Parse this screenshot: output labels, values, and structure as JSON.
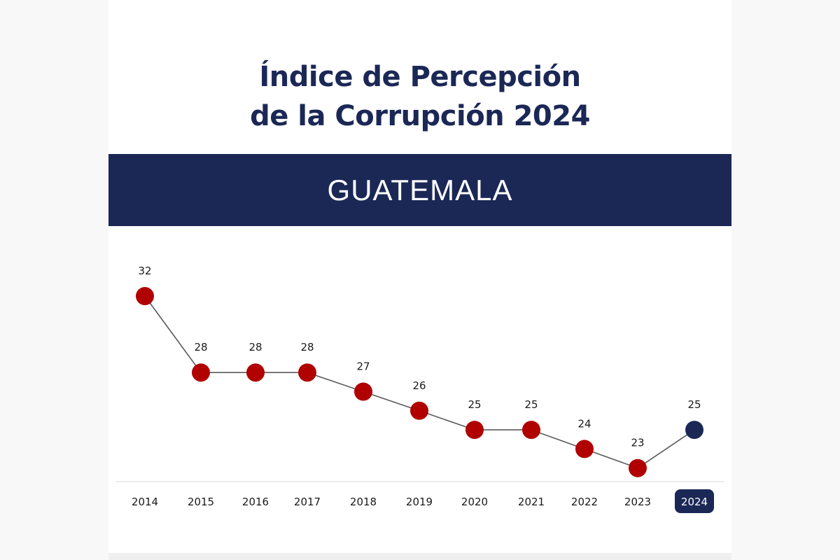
{
  "header": {
    "title_line1": "Índice de Percepción",
    "title_line2": "de la Corrupción 2024",
    "country": "GUATEMALA"
  },
  "colors": {
    "navy": "#1b2856",
    "point": "#b00000",
    "line": "#5a5a5a",
    "axis": "#e6e6e6"
  },
  "chart_data": {
    "type": "line",
    "title": "Índice de Percepción de la Corrupción 2024",
    "xlabel": "",
    "ylabel": "",
    "categories": [
      "2014",
      "2015",
      "2016",
      "2017",
      "2018",
      "2019",
      "2020",
      "2021",
      "2022",
      "2023",
      "2024"
    ],
    "series": [
      {
        "values": [
          32,
          28,
          28,
          28,
          27,
          26,
          25,
          25,
          24,
          23,
          25
        ]
      }
    ],
    "highlight_category": "2024",
    "data_labels": true,
    "grid": false
  }
}
